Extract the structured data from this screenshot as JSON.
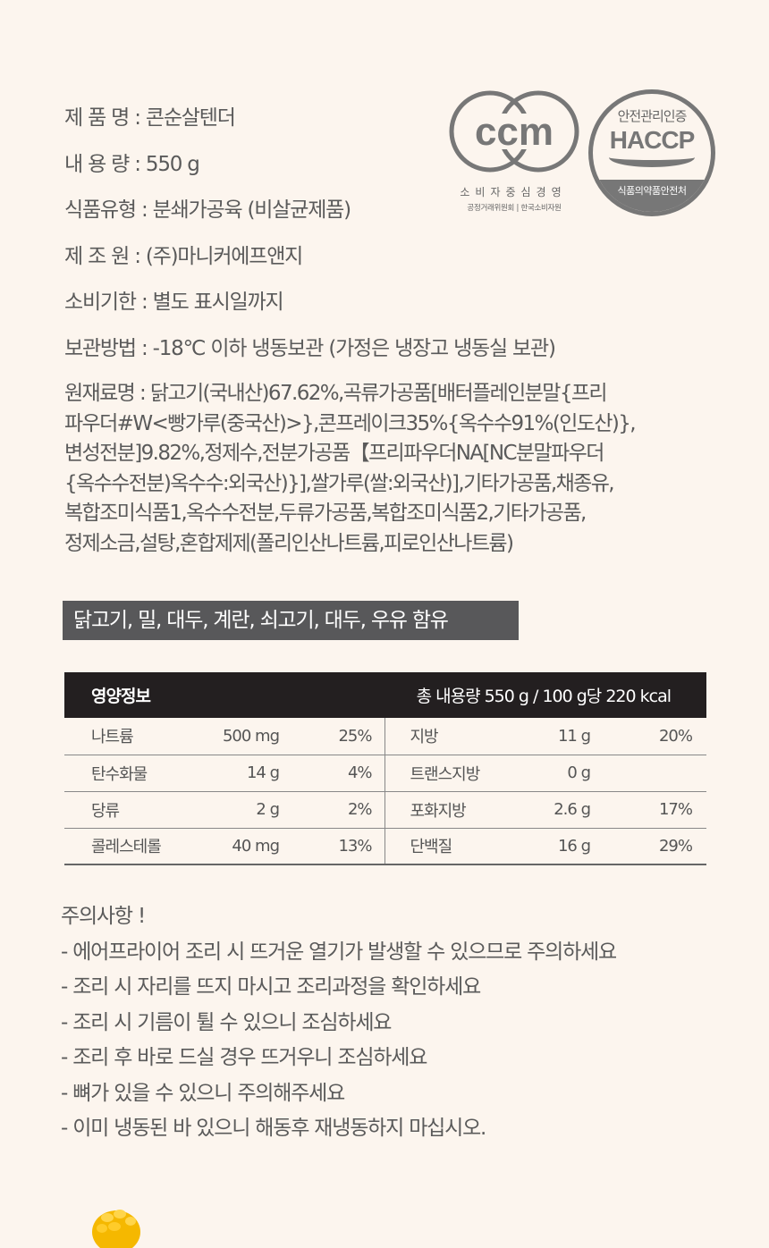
{
  "info": [
    {
      "label": "제 품 명",
      "value": "콘순살텐더"
    },
    {
      "label": "내 용 량",
      "value": "550 g"
    },
    {
      "label": "식품유형",
      "value": "분쇄가공육 (비살균제품)"
    },
    {
      "label": "제 조 원",
      "value": "(주)마니커에프앤지"
    },
    {
      "label": "소비기한",
      "value": "별도 표시일까지"
    },
    {
      "label": "보관방법",
      "value": "-18℃ 이하 냉동보관 (가정은 냉장고 냉동실 보관)"
    }
  ],
  "ingredients": {
    "label": "원재료명",
    "lines": [
      "닭고기(국내산)67.62%,곡류가공품[배터플레인분말{프리",
      "파우더#W<빵가루(중국산)>},콘프레이크35%{옥수수91%(인도산)},",
      "변성전분]9.82%,정제수,전분가공품【프리파우더NA[NC분말파우더",
      "{옥수수전분)옥수수:외국산)}],쌀가루(쌀:외국산)],기타가공품,채종유,",
      "복합조미식품1,옥수수전분,두류가공품,복합조미식품2,기타가공품,",
      "정제소금,설탕,혼합제제(폴리인산나트륨,피로인산나트륨)"
    ]
  },
  "allergen": "닭고기, 밀, 대두, 계란, 쇠고기, 대두, 우유 함유",
  "logos": {
    "ccm": {
      "mark": "ccm",
      "title": "소비자중심경영",
      "org": "공정거래위원회 | 한국소비자원"
    },
    "haccp": {
      "top": "안전관리인증",
      "mark": "HACCP",
      "bottom": "식품의약품안전처"
    }
  },
  "nutrition": {
    "title": "영양정보",
    "summary": "총 내용량 550 g / 100 g당  220 kcal",
    "rows": [
      {
        "left": [
          "나트륨",
          "500 mg",
          "25%"
        ],
        "right": [
          "지방",
          "11 g",
          "20%"
        ]
      },
      {
        "left": [
          "탄수화물",
          "14 g",
          "4%"
        ],
        "right": [
          "트랜스지방",
          "0 g",
          ""
        ]
      },
      {
        "left": [
          "당류",
          "2 g",
          "2%"
        ],
        "right": [
          "포화지방",
          "2.6 g",
          "17%"
        ]
      },
      {
        "left": [
          "콜레스테롤",
          "40 mg",
          "13%"
        ],
        "right": [
          "단백질",
          "16 g",
          "29%"
        ]
      }
    ]
  },
  "warnings": {
    "title": "주의사항 !",
    "items": [
      "- 에어프라이어 조리 시 뜨거운 열기가 발생할 수 있으므로 주의하세요",
      "- 조리 시 자리를 뜨지 마시고 조리과정을 확인하세요",
      "- 조리 시 기름이 튈 수 있으니 조심하세요",
      "- 조리 후 바로 드실 경우 뜨거우니 조심하세요",
      "- 뼈가 있을 수 있으니 주의해주세요",
      "- 이미 냉동된 바 있으니 해동후 재냉동하지 마십시오."
    ]
  },
  "colors": {
    "background": "#fcf5ee",
    "text": "#5a5a5a",
    "table_header": "#231f20",
    "allergen_bg": "#58585a",
    "corn": "#f5b800"
  }
}
